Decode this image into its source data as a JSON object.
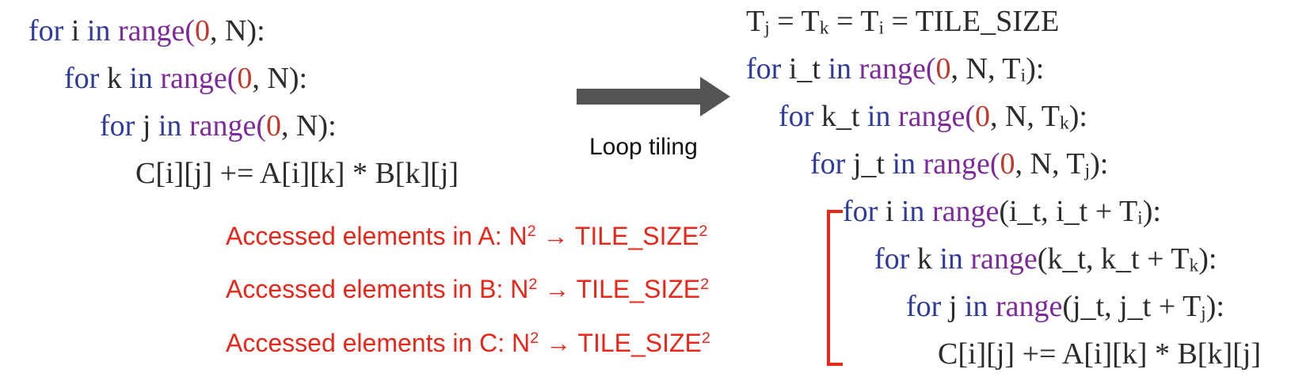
{
  "original": {
    "line1": {
      "kw1": "for",
      "var": "i",
      "kw2": "in",
      "fn": "range",
      "open": "(",
      "start": "0",
      "rest": ", N):"
    },
    "line2": {
      "kw1": "for",
      "var": "k",
      "kw2": "in",
      "fn": "range",
      "open": "(",
      "start": "0",
      "rest": ", N):"
    },
    "line3": {
      "kw1": "for",
      "var": "j",
      "kw2": "in",
      "fn": "range",
      "open": "(",
      "start": "0",
      "rest": ", N):"
    },
    "line4": "C[i][j] += A[i][k] * B[k][j]"
  },
  "transform_label": "Loop tiling",
  "tiled": {
    "header": {
      "t1": "T",
      "s1": "j",
      "eq1": " = T",
      "s2": "k",
      "eq2": " = T",
      "s3": "i",
      "eq3": " = TILE_SIZE"
    },
    "line1": {
      "kw1": "for",
      "var": "i_t",
      "kw2": "in",
      "fn": "range",
      "open": "(",
      "start": "0",
      "mid": ", N, T",
      "sub": "i",
      "end": "):"
    },
    "line2": {
      "kw1": "for",
      "var": "k_t",
      "kw2": "in",
      "fn": "range",
      "open": "(",
      "start": "0",
      "mid": ", N, T",
      "sub": "k",
      "end": "):"
    },
    "line3": {
      "kw1": "for",
      "var": "j_t",
      "kw2": "in",
      "fn": "range",
      "open": "(",
      "start": "0",
      "mid": ", N, T",
      "sub": "j",
      "end": "):"
    },
    "line4": {
      "kw1": "for",
      "var": "i",
      "kw2": "in",
      "fn": "range",
      "args": "(i_t, i_t + T",
      "sub": "i",
      "end": "):"
    },
    "line5": {
      "kw1": "for",
      "var": "k",
      "kw2": "in",
      "fn": "range",
      "args": "(k_t, k_t + T",
      "sub": "k",
      "end": "):"
    },
    "line6": {
      "kw1": "for",
      "var": "j",
      "kw2": "in",
      "fn": "range",
      "args": "(j_t, j_t + T",
      "sub": "j",
      "end": "):"
    },
    "line7": "C[i][j] += A[i][k] * B[k][j]"
  },
  "notes": [
    {
      "prefix": "Accessed elements in A: N",
      "sup1": "2",
      "arrow": " → TILE_SIZE",
      "sup2": "2"
    },
    {
      "prefix": "Accessed elements in B: N",
      "sup1": "2",
      "arrow": " → TILE_SIZE",
      "sup2": "2"
    },
    {
      "prefix": "Accessed elements in C: N",
      "sup1": "2",
      "arrow": " → TILE_SIZE",
      "sup2": "2"
    }
  ],
  "colors": {
    "keyword": "#2e3a9c",
    "function": "#7f2a9c",
    "number": "#c0392b",
    "note": "#e8261a",
    "arrow": "#545454"
  }
}
